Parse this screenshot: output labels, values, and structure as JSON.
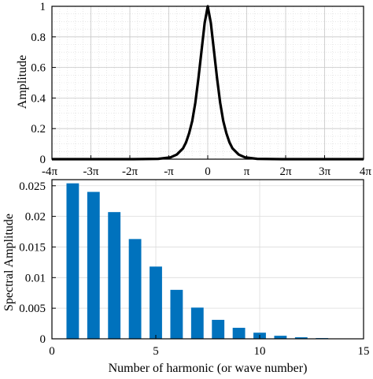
{
  "colors": {
    "curve": "#000000",
    "bars": "#0072bd",
    "grid": "#d9d9d9",
    "axis": "#000000"
  },
  "chart_data": [
    {
      "type": "line",
      "title": "",
      "xlabel": "",
      "ylabel": "Amplitude",
      "xlim": [
        -12.566,
        12.566
      ],
      "ylim": [
        0,
        1
      ],
      "grid": "on",
      "minor_grid": "on",
      "x_ticks": [
        -12.566,
        -9.425,
        -6.283,
        -3.142,
        0,
        3.142,
        6.283,
        9.425,
        12.566
      ],
      "x_tick_labels": [
        "-4π",
        "-3π",
        "-2π",
        "-π",
        "0",
        "π",
        "2π",
        "3π",
        "4π"
      ],
      "y_ticks": [
        0,
        0.2,
        0.4,
        0.6,
        0.8,
        1
      ],
      "y_tick_labels": [
        "0",
        "0.2",
        "0.4",
        "0.6",
        "0.8",
        "1"
      ],
      "series": [
        {
          "x": [
            -12.566,
            -6,
            -4,
            -3,
            -2.5,
            -2,
            -1.75,
            -1.5,
            -1.25,
            -1,
            -0.75,
            -0.5,
            -0.25,
            0,
            0.25,
            0.5,
            0.75,
            1,
            1.25,
            1.5,
            1.75,
            2,
            2.5,
            3,
            4,
            6,
            12.566
          ],
          "y": [
            0,
            0,
            0.002,
            0.012,
            0.03,
            0.07,
            0.11,
            0.17,
            0.25,
            0.37,
            0.53,
            0.71,
            0.89,
            1,
            0.89,
            0.71,
            0.53,
            0.37,
            0.25,
            0.17,
            0.11,
            0.07,
            0.03,
            0.012,
            0.002,
            0,
            0
          ]
        }
      ]
    },
    {
      "type": "bar",
      "title": "",
      "xlabel": "Number of harmonic (or wave number)",
      "ylabel": "Spectral Amplitude",
      "xlim": [
        0,
        15
      ],
      "ylim": [
        0,
        0.026
      ],
      "grid": "on",
      "x_ticks": [
        0,
        5,
        10,
        15
      ],
      "x_tick_labels": [
        "0",
        "5",
        "10",
        "15"
      ],
      "y_ticks": [
        0,
        0.005,
        0.01,
        0.015,
        0.02,
        0.025
      ],
      "y_tick_labels": [
        "0",
        "0.005",
        "0.01",
        "0.015",
        "0.02",
        "0.025"
      ],
      "categories": [
        1,
        2,
        3,
        4,
        5,
        6,
        7,
        8,
        9,
        10,
        11,
        12,
        13,
        14
      ],
      "values": [
        0.0254,
        0.024,
        0.0207,
        0.0163,
        0.0118,
        0.008,
        0.0051,
        0.0031,
        0.0018,
        0.001,
        0.0005,
        0.00025,
        0.00012,
        5e-05
      ]
    }
  ]
}
